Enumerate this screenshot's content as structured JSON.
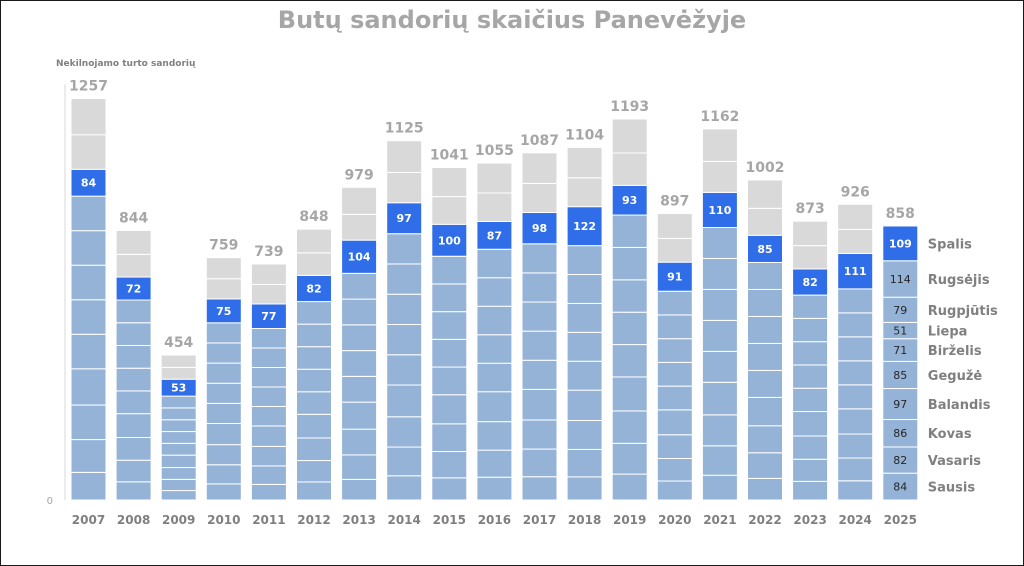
{
  "chart_data": {
    "type": "bar",
    "stacked": true,
    "title": "Butų sandorių skaičius Panevėžyje",
    "ylabel": "Nekilnojamo turto sandorių",
    "xlabel": "",
    "ylim": [
      0,
      1300
    ],
    "y_tick_labels": [
      "0"
    ],
    "grid": false,
    "legend": "right",
    "categories": [
      "2007",
      "2008",
      "2009",
      "2010",
      "2011",
      "2012",
      "2013",
      "2014",
      "2015",
      "2016",
      "2017",
      "2018",
      "2019",
      "2020",
      "2021",
      "2022",
      "2023",
      "2024",
      "2025"
    ],
    "totals": [
      1257,
      844,
      454,
      759,
      739,
      848,
      979,
      1125,
      1041,
      1055,
      1087,
      1104,
      1193,
      897,
      1162,
      1002,
      873,
      926,
      858
    ],
    "october_values": [
      84,
      72,
      53,
      75,
      77,
      82,
      104,
      97,
      100,
      87,
      98,
      122,
      93,
      91,
      110,
      85,
      82,
      111,
      109
    ],
    "segments_2025": [
      {
        "month": "Sausis",
        "value": 84
      },
      {
        "month": "Vasaris",
        "value": 82
      },
      {
        "month": "Kovas",
        "value": 86
      },
      {
        "month": "Balandis",
        "value": 97
      },
      {
        "month": "Gegužė",
        "value": 85
      },
      {
        "month": "Birželis",
        "value": 71
      },
      {
        "month": "Liepa",
        "value": 51
      },
      {
        "month": "Rugpjūtis",
        "value": 79
      },
      {
        "month": "Rugsėjis",
        "value": 114
      },
      {
        "month": "Spalis",
        "value": 109
      }
    ],
    "colors": {
      "months_before": "#94b3d7",
      "october": "#2f6ee8",
      "months_after": "#d9d9d9",
      "total_label": "#a6a6a6",
      "segment_label": "#262626",
      "legend_label": "#808080",
      "axis": "#d9d9d9"
    }
  }
}
